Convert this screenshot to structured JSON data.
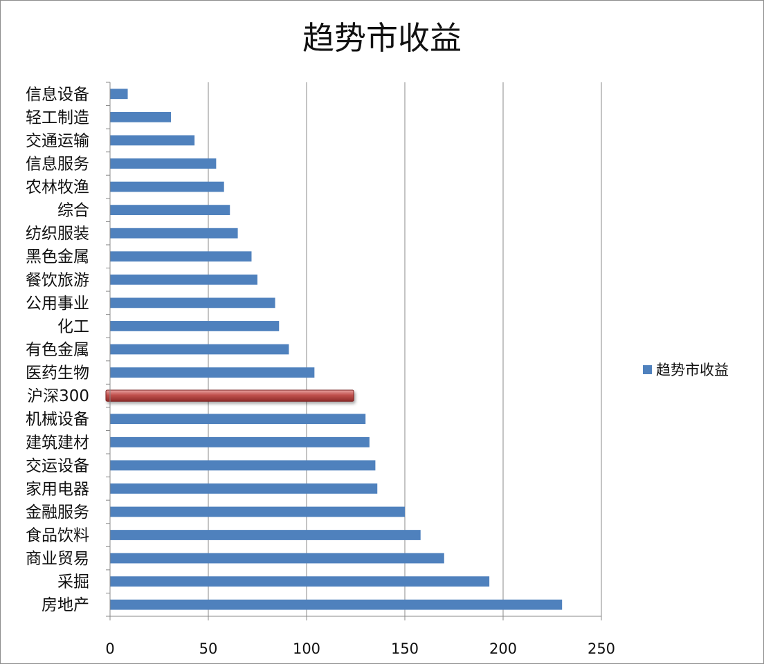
{
  "chart_data": {
    "type": "bar",
    "orientation": "horizontal",
    "title": "趋势市收益",
    "xlabel": "",
    "ylabel": "",
    "xlim": [
      0,
      250
    ],
    "xticks": [
      0,
      50,
      100,
      150,
      200,
      250
    ],
    "grid": true,
    "legend_position": "right",
    "categories": [
      "信息设备",
      "轻工制造",
      "交通运输",
      "信息服务",
      "农林牧渔",
      "综合",
      "纺织服装",
      "黑色金属",
      "餐饮旅游",
      "公用事业",
      "化工",
      "有色金属",
      "医药生物",
      "沪深300",
      "机械设备",
      "建筑建材",
      "交运设备",
      "家用电器",
      "金融服务",
      "食品饮料",
      "商业贸易",
      "采掘",
      "房地产"
    ],
    "series": [
      {
        "name": "趋势市收益",
        "color": "#4f81bd",
        "values": [
          9,
          31,
          43,
          54,
          58,
          61,
          65,
          72,
          75,
          84,
          86,
          91,
          104,
          124,
          130,
          132,
          135,
          136,
          150,
          158,
          170,
          193,
          230
        ]
      }
    ],
    "highlight": {
      "category": "沪深300",
      "color": "#c0504d"
    }
  }
}
